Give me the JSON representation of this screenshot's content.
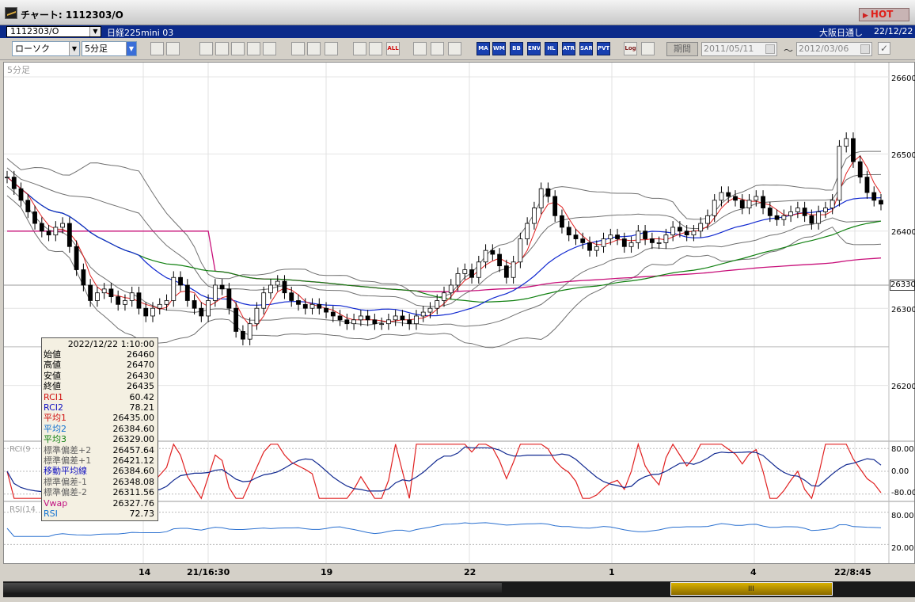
{
  "window": {
    "title": "チャート: 1112303/O",
    "hot_label": "HOT"
  },
  "info": {
    "symbol_code": "1112303/O",
    "symbol_name": "日経225mini 03",
    "market": "大阪日通し",
    "date": "22/12/22"
  },
  "toolbar": {
    "chart_type": "ローソク",
    "interval": "5分足",
    "buttons": [
      "zoom",
      "cross",
      "draw-trend",
      "draw-fib",
      "draw-line",
      "draw-fan",
      "erase",
      "line",
      "cursor",
      "redo",
      "bar-width",
      "bar-split",
      "ALL",
      "settings",
      "wrench",
      "palette",
      "MA",
      "WMA",
      "BB",
      "ENV",
      "HL",
      "ATR",
      "SAR",
      "PVT",
      "Log",
      "export"
    ],
    "period_label": "期間",
    "date_from": "2011/05/11",
    "date_to": "2012/03/06",
    "tilde": "～"
  },
  "chart": {
    "interval_label": "5分足",
    "rci_label": "RCI(9",
    "rsi_label": "RSI(14",
    "current_price_tag": "26330",
    "y_labels": [
      "26600",
      "26500",
      "26400",
      "26300",
      "26200"
    ],
    "rci_y_labels": [
      "80.00",
      "0.00",
      "-80.00"
    ],
    "rsi_y_labels": [
      "80.00",
      "20.00"
    ],
    "x_labels": [
      "14",
      "21/16:30",
      "19",
      "22",
      "1",
      "4",
      "22/8:45"
    ]
  },
  "datawindow": {
    "time": "2022/12/22  1:10:00",
    "rows": [
      {
        "label": "始値",
        "value": "26460",
        "color": "#000000"
      },
      {
        "label": "高値",
        "value": "26470",
        "color": "#000000"
      },
      {
        "label": "安値",
        "value": "26430",
        "color": "#000000"
      },
      {
        "label": "終値",
        "value": "26435",
        "color": "#000000"
      },
      {
        "label": "RCI1",
        "value": "60.42",
        "color": "#d01010"
      },
      {
        "label": "RCI2",
        "value": "78.21",
        "color": "#1010c0"
      },
      {
        "label": "平均1",
        "value": "26435.00",
        "color": "#d01010"
      },
      {
        "label": "平均2",
        "value": "26384.60",
        "color": "#1070d0"
      },
      {
        "label": "平均3",
        "value": "26329.00",
        "color": "#108010"
      },
      {
        "label": "標準偏差+2",
        "value": "26457.64",
        "color": "#606060"
      },
      {
        "label": "標準偏差+1",
        "value": "26421.12",
        "color": "#606060"
      },
      {
        "label": "移動平均線",
        "value": "26384.60",
        "color": "#1010c0"
      },
      {
        "label": "標準偏差-1",
        "value": "26348.08",
        "color": "#606060"
      },
      {
        "label": "標準偏差-2",
        "value": "26311.56",
        "color": "#606060"
      },
      {
        "label": "Vwap",
        "value": "26327.76",
        "color": "#c01080"
      },
      {
        "label": "RSI",
        "value": "72.73",
        "color": "#1070d0"
      }
    ]
  },
  "colors": {
    "ma1": "#e02020",
    "ma2": "#1028d0",
    "ma3": "#108010",
    "vwap": "#c8107a",
    "bb": "#707070",
    "rci1": "#e02020",
    "rci2": "#102890",
    "rsi": "#2a70d0"
  },
  "price_series": [
    26470,
    26455,
    26440,
    26425,
    26410,
    26400,
    26395,
    26405,
    26410,
    26380,
    26350,
    26330,
    26310,
    26320,
    26325,
    26315,
    26305,
    26310,
    26320,
    26300,
    26290,
    26300,
    26305,
    26310,
    26340,
    26330,
    26310,
    26300,
    26290,
    26310,
    26330,
    26325,
    26300,
    26270,
    26260,
    26280,
    26300,
    26320,
    26330,
    26335,
    26320,
    26310,
    26305,
    26300,
    26305,
    26300,
    26295,
    26290,
    26285,
    26280,
    26285,
    26290,
    26285,
    26280,
    26280,
    26285,
    26290,
    26285,
    26280,
    26290,
    26295,
    26300,
    26310,
    26320,
    26330,
    26345,
    26350,
    26340,
    26360,
    26375,
    26370,
    26355,
    26340,
    26360,
    26390,
    26410,
    26430,
    26455,
    26445,
    26420,
    26405,
    26395,
    26390,
    26385,
    26375,
    26380,
    26390,
    26395,
    26390,
    26380,
    26385,
    26400,
    26390,
    26385,
    26385,
    26395,
    26405,
    26400,
    26395,
    26400,
    26410,
    26420,
    26440,
    26450,
    26445,
    26440,
    26430,
    26440,
    26445,
    26430,
    26420,
    26415,
    26420,
    26425,
    26430,
    26420,
    26410,
    26425,
    26430,
    26440,
    26510,
    26520,
    26490,
    26470,
    26450,
    26440,
    26435
  ]
}
